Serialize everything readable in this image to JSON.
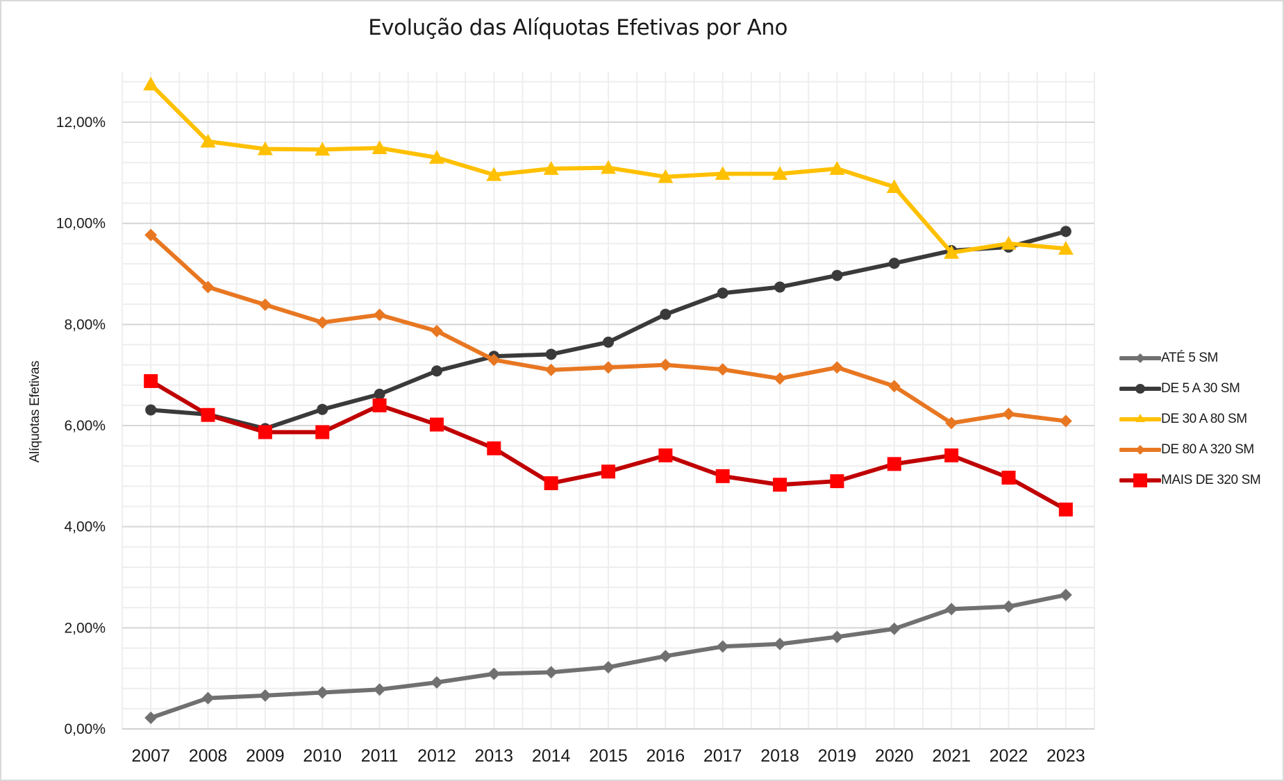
{
  "chart_data": {
    "type": "line",
    "title": "Evolução das Alíquotas Efetivas por Ano",
    "xlabel": "",
    "ylabel": "Alíquotas Efetivas",
    "ylim": [
      0,
      13
    ],
    "y_ticks": [
      0,
      2,
      4,
      6,
      8,
      10,
      12
    ],
    "y_tick_labels": [
      "0,00%",
      "2,00%",
      "4,00%",
      "6,00%",
      "8,00%",
      "10,00%",
      "12,00%"
    ],
    "y_minor_step": 0.4,
    "grid": true,
    "legend_position": "right",
    "x": [
      "2007",
      "2008",
      "2009",
      "2010",
      "2011",
      "2012",
      "2013",
      "2014",
      "2015",
      "2016",
      "2017",
      "2018",
      "2019",
      "2020",
      "2021",
      "2022",
      "2023"
    ],
    "series": [
      {
        "name": "ATÉ 5 SM",
        "color": "#707070",
        "marker": "diamond",
        "values": [
          0.22,
          0.61,
          0.66,
          0.72,
          0.78,
          0.92,
          1.09,
          1.12,
          1.22,
          1.44,
          1.63,
          1.68,
          1.82,
          1.98,
          2.37,
          2.42,
          2.65
        ]
      },
      {
        "name": "DE 5 A 30 SM",
        "color": "#3a3a3a",
        "marker": "circle",
        "values": [
          6.31,
          6.22,
          5.94,
          6.32,
          6.62,
          7.08,
          7.37,
          7.41,
          7.65,
          8.2,
          8.62,
          8.74,
          8.97,
          9.21,
          9.46,
          9.53,
          9.84
        ]
      },
      {
        "name": "DE 30 A 80 SM",
        "color": "#ffc000",
        "marker": "triangle",
        "values": [
          12.75,
          11.62,
          11.47,
          11.46,
          11.49,
          11.3,
          10.96,
          11.08,
          11.1,
          10.92,
          10.98,
          10.98,
          11.08,
          10.72,
          9.42,
          9.6,
          9.5
        ]
      },
      {
        "name": "DE 80 A 320 SM",
        "color": "#e87722",
        "marker": "diamond",
        "values": [
          9.77,
          8.74,
          8.39,
          8.04,
          8.19,
          7.87,
          7.3,
          7.1,
          7.15,
          7.2,
          7.11,
          6.93,
          7.15,
          6.78,
          6.05,
          6.23,
          6.09
        ]
      },
      {
        "name": "MAIS DE 320 SM",
        "color": "#c00000",
        "marker_color": "#ff0000",
        "marker": "square",
        "values": [
          6.88,
          6.21,
          5.87,
          5.87,
          6.4,
          6.02,
          5.55,
          4.86,
          5.09,
          5.41,
          5.0,
          4.83,
          4.9,
          5.24,
          5.41,
          4.97,
          4.34
        ]
      }
    ]
  }
}
